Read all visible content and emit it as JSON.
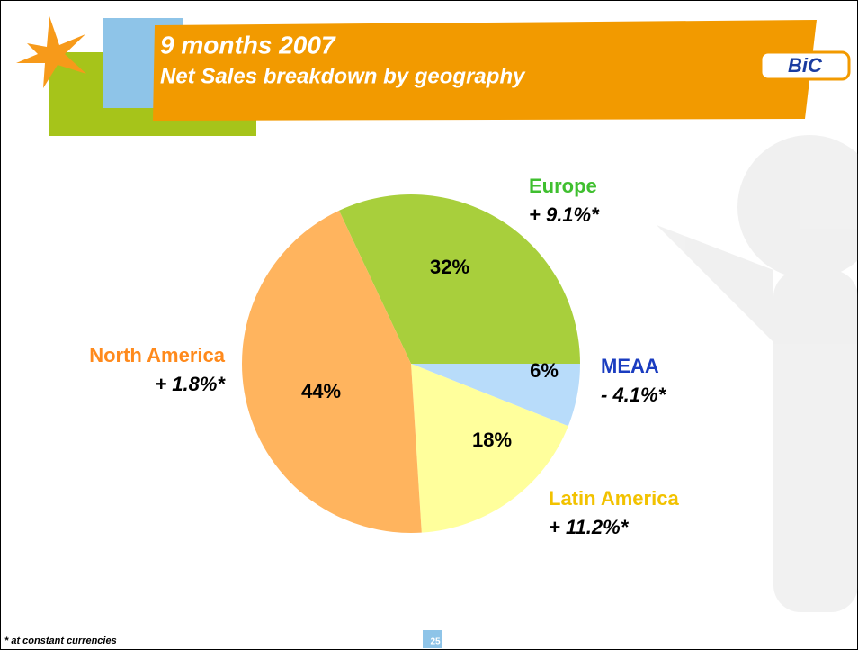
{
  "header": {
    "title": "9 months 2007",
    "subtitle": "Net Sales breakdown by geography",
    "logo": "BiC"
  },
  "chart_data": {
    "type": "pie",
    "categories": [
      "Europe",
      "MEAA",
      "Latin America",
      "North America"
    ],
    "values": [
      32,
      6,
      18,
      44
    ],
    "value_labels": [
      "32%",
      "6%",
      "18%",
      "44%"
    ],
    "growth_labels": [
      "+ 9.1%*",
      "- 4.1%*",
      "+ 11.2%*",
      "+ 1.8%*"
    ],
    "colors": [
      "#a8cf3c",
      "#b8dcfa",
      "#ffff9c",
      "#ffb45e"
    ],
    "label_colors": [
      "#3fbf2f",
      "#1a3cc0",
      "#f2c200",
      "#ff8a1c"
    ]
  },
  "footer": {
    "note": "* at constant currencies",
    "page": "25"
  }
}
